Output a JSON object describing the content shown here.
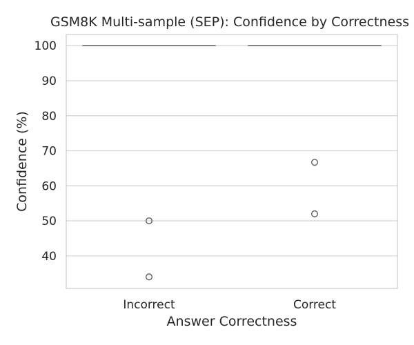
{
  "chart_data": {
    "type": "box",
    "title": "GSM8K Multi-sample (SEP): Confidence by Correctness",
    "xlabel": "Answer Correctness",
    "ylabel": "Confidence (%)",
    "categories": [
      "Incorrect",
      "Correct"
    ],
    "ylim": [
      30.7,
      103.2
    ],
    "yticks": [
      40,
      50,
      60,
      70,
      80,
      90,
      100
    ],
    "grid": true,
    "boxes": [
      {
        "category": "Incorrect",
        "q1": 100,
        "median": 100,
        "q3": 100,
        "whisker_low": 100,
        "whisker_high": 100,
        "outliers": [
          50,
          34
        ]
      },
      {
        "category": "Correct",
        "q1": 100,
        "median": 100,
        "q3": 100,
        "whisker_low": 100,
        "whisker_high": 100,
        "outliers": [
          66.7,
          52
        ]
      }
    ],
    "colors": {
      "box_line": "#555555",
      "grid": "#d3d3d3",
      "spine": "#cccccc",
      "text": "#262626"
    }
  }
}
